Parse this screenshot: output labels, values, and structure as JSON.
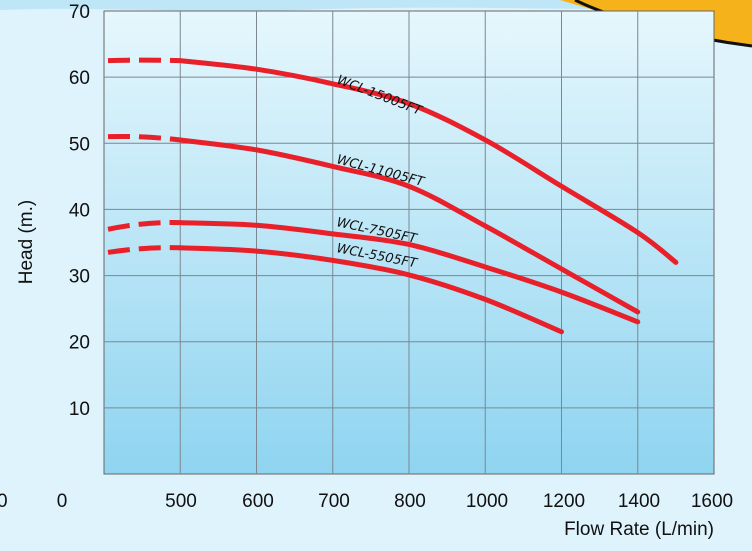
{
  "chart_data": {
    "type": "line",
    "xlabel": "Flow Rate (L/min)",
    "ylabel": "Head (m.)",
    "x_tick_labels": [
      "0",
      "500",
      "600",
      "700",
      "800",
      "1000",
      "1200",
      "1400",
      "1600"
    ],
    "stray_left_label": "0",
    "y_ticks": [
      10,
      20,
      30,
      40,
      50,
      60,
      70
    ],
    "ylim": [
      0,
      70
    ],
    "grid": true,
    "line_color": "#e8202a",
    "note": "",
    "series": [
      {
        "name": "WCL-15005FT",
        "dashed": [
          [
            0,
            62.5
          ],
          [
            500,
            62.5
          ]
        ],
        "x": [
          500,
          600,
          700,
          800,
          1000,
          1200,
          1400,
          1500
        ],
        "y": [
          62.5,
          61.2,
          59,
          56,
          50.5,
          43.5,
          36.5,
          32
        ]
      },
      {
        "name": "WCL-11005FT",
        "dashed": [
          [
            0,
            51
          ],
          [
            500,
            50.5
          ]
        ],
        "x": [
          500,
          600,
          700,
          800,
          1000,
          1200,
          1400
        ],
        "y": [
          50.5,
          49,
          46.5,
          43.5,
          37.5,
          31,
          24.5
        ]
      },
      {
        "name": "WCL-7505FT",
        "dashed": [
          [
            0,
            37
          ],
          [
            500,
            38
          ]
        ],
        "x": [
          500,
          600,
          700,
          800,
          1000,
          1200,
          1400
        ],
        "y": [
          38,
          37.6,
          36.3,
          34.7,
          31.3,
          27.5,
          23
        ]
      },
      {
        "name": "WCL-5505FT",
        "dashed": [
          [
            0,
            33.5
          ],
          [
            500,
            34.2
          ]
        ],
        "x": [
          500,
          600,
          700,
          800,
          1000,
          1200
        ],
        "y": [
          34.2,
          33.7,
          32.3,
          30.1,
          26.4,
          21.5
        ]
      }
    ]
  }
}
